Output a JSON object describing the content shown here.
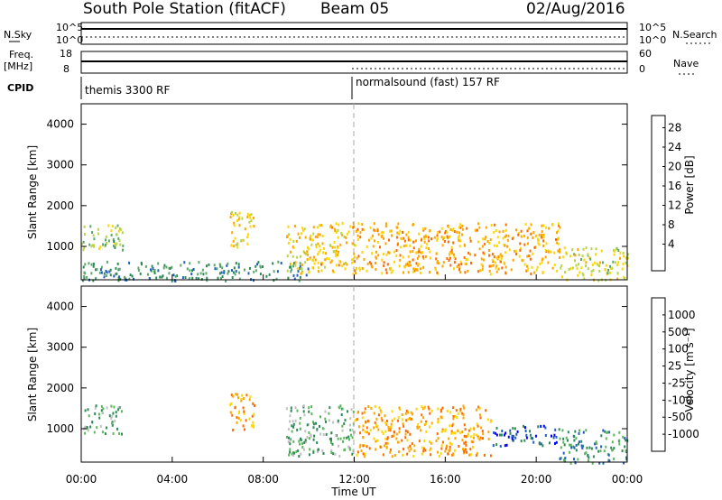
{
  "header": {
    "station": "South Pole Station (fitACF)",
    "beam": "Beam 05",
    "date": "02/Aug/2016"
  },
  "top_panels": {
    "nsky_label": "N.Sky",
    "nsearch_label": "N.Search",
    "freq_label_1": "Freq.",
    "freq_label_2": "[MHz]",
    "nave_label": "Nave",
    "cpid_label": "CPID",
    "nsky_ticks": [
      "10^5",
      "10^0"
    ],
    "nsearch_ticks": [
      "10^5",
      "10^0"
    ],
    "freq_ticks": [
      "18",
      "8"
    ],
    "nave_ticks": [
      "60",
      "0"
    ],
    "cpid_segments": [
      {
        "label": "themis 3300 RF",
        "start_hour": 0
      },
      {
        "label": "normalsound (fast) 157 RF",
        "start_hour": 12
      }
    ]
  },
  "chart_data": [
    {
      "type": "heatmap",
      "title": "",
      "xlabel": "",
      "ylabel": "Slant Range [km]",
      "xlim": [
        0,
        24
      ],
      "ylim": [
        180,
        4500
      ],
      "x_ticks": [
        "00:00",
        "04:00",
        "08:00",
        "12:00",
        "16:00",
        "20:00",
        "00:00"
      ],
      "y_ticks": [
        "1000",
        "2000",
        "3000",
        "4000"
      ],
      "colorbar": {
        "label": "Power [dB]",
        "ticks": [
          "4",
          "8",
          "12",
          "16",
          "20",
          "24",
          "28"
        ],
        "range": [
          0,
          30
        ],
        "colors": [
          "#0000ff",
          "#1f5fbf",
          "#2e8b57",
          "#5fa86b",
          "#b7d44a",
          "#ffd700",
          "#ffa500",
          "#ff6a00",
          "#ff0000"
        ]
      },
      "regions": [
        {
          "t0": 0.0,
          "t1": 1.8,
          "r0": 900,
          "r1": 1600,
          "level": 14
        },
        {
          "t0": 0.0,
          "t1": 10.0,
          "r0": 180,
          "r1": 650,
          "level": 8
        },
        {
          "t0": 6.5,
          "t1": 7.6,
          "r0": 1000,
          "r1": 1900,
          "level": 19
        },
        {
          "t0": 9.0,
          "t1": 12.0,
          "r0": 350,
          "r1": 1600,
          "level": 20
        },
        {
          "t0": 12.0,
          "t1": 21.0,
          "r0": 350,
          "r1": 1600,
          "level": 22
        },
        {
          "t0": 21.0,
          "t1": 24.0,
          "r0": 180,
          "r1": 1000,
          "level": 17
        }
      ]
    },
    {
      "type": "heatmap",
      "title": "",
      "xlabel": "Time UT",
      "ylabel": "Slant Range [km]",
      "xlim": [
        0,
        24
      ],
      "ylim": [
        180,
        4500
      ],
      "x_ticks": [
        "00:00",
        "04:00",
        "08:00",
        "12:00",
        "16:00",
        "20:00",
        "00:00"
      ],
      "y_ticks": [
        "1000",
        "2000",
        "3000",
        "4000"
      ],
      "colorbar": {
        "label": "Velocity [m s⁻¹]",
        "ticks": [
          "1000",
          "500",
          "100",
          "25",
          "-25",
          "-100",
          "-500",
          "-1000"
        ],
        "colors": [
          "#0000ff",
          "#1f5fbf",
          "#2e8b57",
          "#5cb85c",
          "#c0c0c0",
          "#ffd700",
          "#ffa500",
          "#ff6a00",
          "#ff0000"
        ]
      },
      "regions": [
        {
          "t0": 0.0,
          "t1": 1.8,
          "r0": 900,
          "r1": 1600,
          "level": 3
        },
        {
          "t0": 6.5,
          "t1": 7.6,
          "r0": 1000,
          "r1": 1900,
          "level": 6
        },
        {
          "t0": 9.0,
          "t1": 12.0,
          "r0": 350,
          "r1": 1600,
          "level": 3
        },
        {
          "t0": 12.0,
          "t1": 18.0,
          "r0": 350,
          "r1": 1600,
          "level": 6
        },
        {
          "t0": 18.0,
          "t1": 21.0,
          "r0": 600,
          "r1": 1100,
          "level": 1
        },
        {
          "t0": 21.0,
          "t1": 24.0,
          "r0": 180,
          "r1": 1000,
          "level": 2
        }
      ]
    }
  ]
}
